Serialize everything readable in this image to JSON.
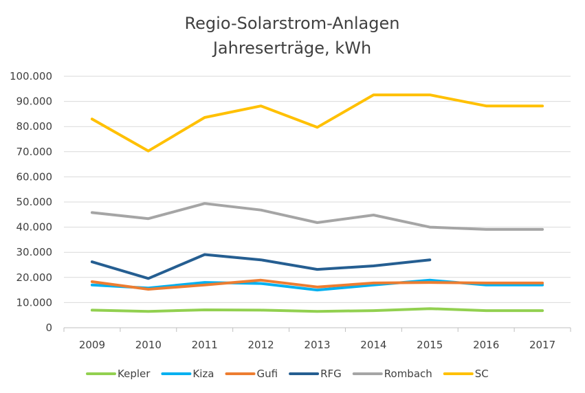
{
  "chart_data": {
    "type": "line",
    "title": [
      "Regio-Solarstrom-Anlagen",
      "Jahreserträge, kWh"
    ],
    "xlabel": "",
    "ylabel": "",
    "categories": [
      "2009",
      "2010",
      "2011",
      "2012",
      "2013",
      "2014",
      "2015",
      "2016",
      "2017"
    ],
    "ylim": [
      0,
      100000
    ],
    "yticks": [
      0,
      10000,
      20000,
      30000,
      40000,
      50000,
      60000,
      70000,
      80000,
      90000,
      100000
    ],
    "ytick_labels": [
      "0",
      "10.000",
      "20.000",
      "30.000",
      "40.000",
      "50.000",
      "60.000",
      "70.000",
      "80.000",
      "90.000",
      "100.000"
    ],
    "grid": "horizontal",
    "legend_position": "bottom",
    "series": [
      {
        "name": "Kepler",
        "color": "#92d050",
        "values": [
          7000,
          6500,
          7100,
          7000,
          6500,
          6800,
          7600,
          6800,
          6800
        ]
      },
      {
        "name": "Kiza",
        "color": "#00b0f0",
        "values": [
          17000,
          15800,
          18000,
          17600,
          15000,
          17000,
          18900,
          17000,
          17000
        ]
      },
      {
        "name": "Gufi",
        "color": "#ed7d31",
        "values": [
          18300,
          15300,
          17000,
          18900,
          16200,
          17800,
          18000,
          17800,
          17800
        ]
      },
      {
        "name": "RFG",
        "color": "#255e91",
        "values": [
          26200,
          19600,
          29100,
          27000,
          23200,
          24600,
          27000,
          null,
          null
        ]
      },
      {
        "name": "Rombach",
        "color": "#a5a5a5",
        "values": [
          45800,
          43400,
          49400,
          46800,
          41800,
          44800,
          40000,
          39100,
          39100
        ]
      },
      {
        "name": "SC",
        "color": "#ffc000",
        "values": [
          83000,
          70300,
          83600,
          88200,
          79700,
          92600,
          92600,
          88200,
          88200
        ]
      }
    ]
  }
}
